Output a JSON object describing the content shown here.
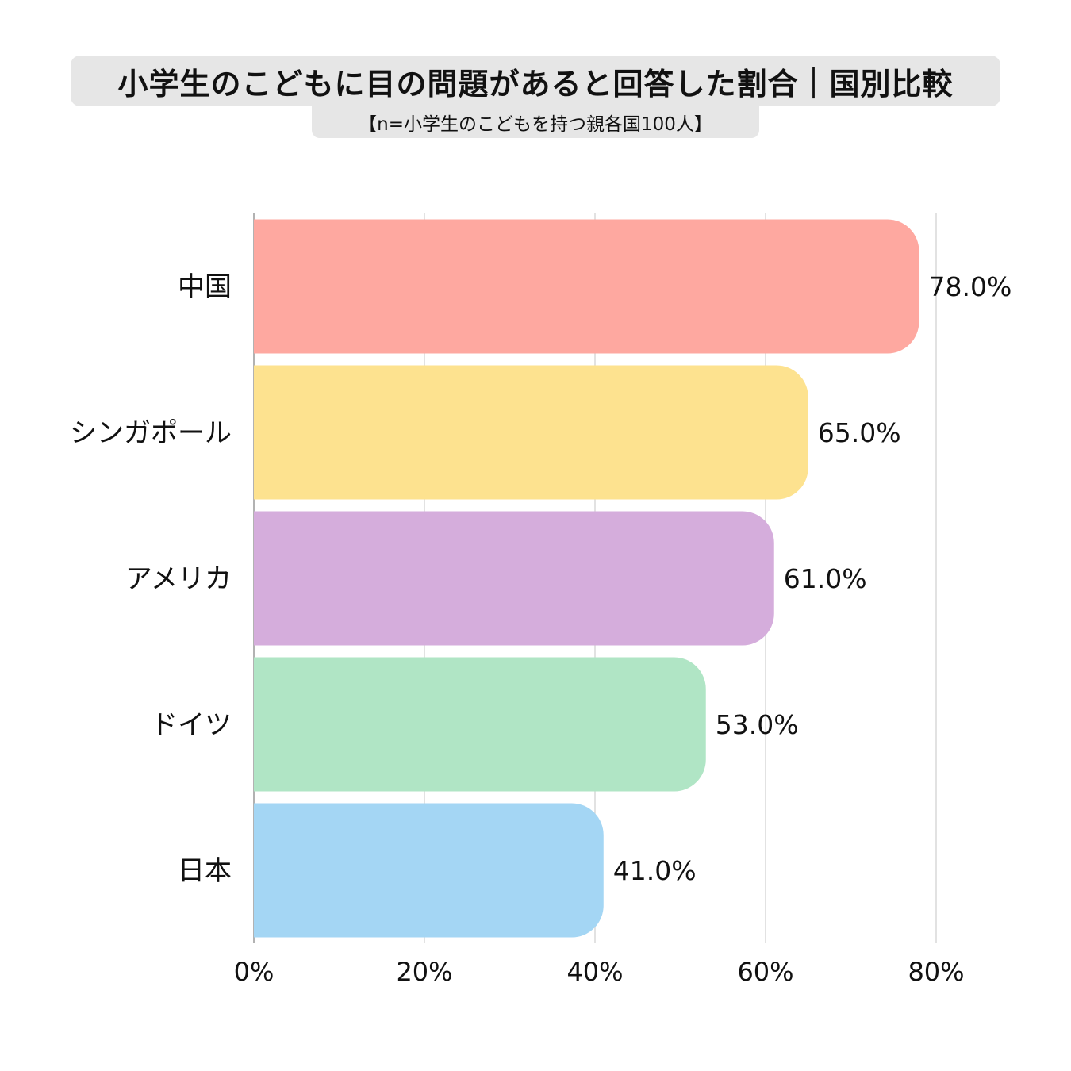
{
  "title": "小学生のこどもに目の問題があると回答した割合｜国別比較",
  "subtitle": "【n=小学生のこどもを持つ親各国100人】",
  "chart_data": {
    "type": "bar",
    "orientation": "horizontal",
    "categories": [
      "中国",
      "シンガポール",
      "アメリカ",
      "ドイツ",
      "日本"
    ],
    "values": [
      78.0,
      65.0,
      61.0,
      53.0,
      41.0
    ],
    "value_labels": [
      "78.0%",
      "65.0%",
      "61.0%",
      "53.0%",
      "41.0%"
    ],
    "colors": [
      "#fea8a0",
      "#fde28f",
      "#d5addc",
      "#b0e5c5",
      "#a4d6f4"
    ],
    "xlim": [
      0,
      80
    ],
    "xticks": [
      0,
      20,
      40,
      60,
      80
    ],
    "xtick_labels": [
      "0%",
      "20%",
      "40%",
      "60%",
      "80%"
    ],
    "grid": true,
    "legend": "none"
  }
}
